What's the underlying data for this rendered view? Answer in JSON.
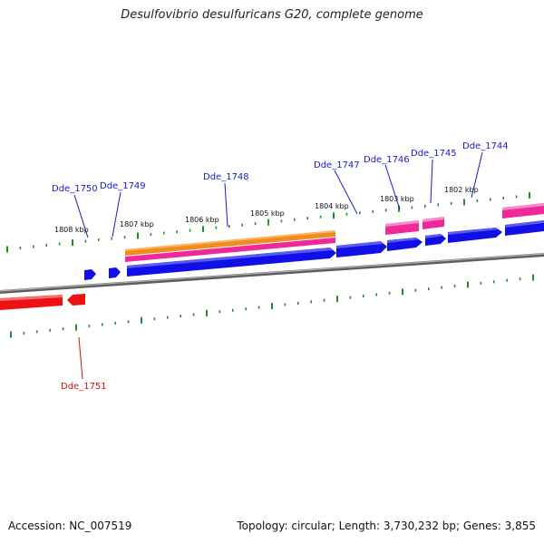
{
  "title": "Desulfovibrio desulfuricans G20, complete genome",
  "footer": {
    "accession": "Accession: NC_007519",
    "summary": "Topology: circular; Length: 3,730,232 bp; Genes: 3,855"
  },
  "colors": {
    "forward_gene": "#1010e6",
    "reverse_gene": "#ee1111",
    "orange_feature": "#f08c1e",
    "pink_feature": "#ee2a9a",
    "tick": "#2a8a2a",
    "backbone": "#7a7a7a",
    "forward_label": "#1a1ac8",
    "reverse_label": "#cc1111"
  },
  "kbp_labels": [
    "1808 kbp",
    "1807 kbp",
    "1806 kbp",
    "1805 kbp",
    "1804 kbp",
    "1803 kbp",
    "1802 kbp"
  ],
  "gene_labels": [
    {
      "name": "Dde_1750",
      "strand": "forward"
    },
    {
      "name": "Dde_1749",
      "strand": "forward"
    },
    {
      "name": "Dde_1748",
      "strand": "forward"
    },
    {
      "name": "Dde_1747",
      "strand": "forward"
    },
    {
      "name": "Dde_1746",
      "strand": "forward"
    },
    {
      "name": "Dde_1745",
      "strand": "forward"
    },
    {
      "name": "Dde_1744",
      "strand": "forward"
    },
    {
      "name": "Dde_1751",
      "strand": "reverse"
    }
  ]
}
